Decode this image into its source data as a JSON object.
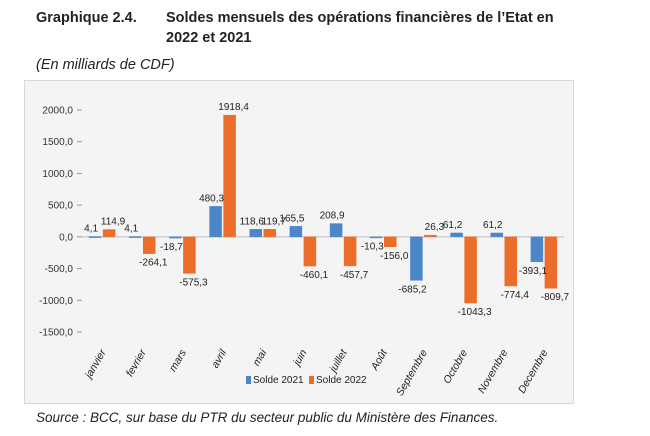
{
  "header": {
    "number": "Graphique 2.4.",
    "title_line1": "Soldes mensuels des opérations financières de l’Etat en",
    "title_line2": "2022 et  2021",
    "unit": "(En milliards de CDF)"
  },
  "source": "Source : BCC, sur base du PTR du secteur public du Ministère des Finances.",
  "chart_data": {
    "type": "bar",
    "title": "Soldes mensuels des opérations financières de l’Etat en 2022 et 2021",
    "ylabel": "En milliards de CDF",
    "ylim": [
      -1500,
      2000
    ],
    "yticks": [
      2000,
      1500,
      1000,
      500,
      0,
      -500,
      -1000,
      -1500
    ],
    "ytick_labels": [
      "2000,0",
      "1500,0",
      "1000,0",
      "500,0",
      "0,0",
      "-500,0",
      "-1000,0",
      "-1500,0"
    ],
    "categories": [
      "janvier",
      "fevrier",
      "mars",
      "avril",
      "mai",
      "juin",
      "juillet",
      "Août",
      "Septembre",
      "Octobre",
      "Novembre",
      "Decembre"
    ],
    "series": [
      {
        "name": "Solde 2021",
        "color": "#4a86c8",
        "values": [
          4.1,
          4.1,
          -18.7,
          480.3,
          118.6,
          165.5,
          208.9,
          -10.3,
          -685.2,
          61.2,
          61.2,
          -393.1
        ],
        "labels": [
          "4,1",
          "4,1",
          "-18,7",
          "480,3",
          "118,6",
          "165,5",
          "208,9",
          "-10,3",
          "-685,2",
          "61,2",
          "61,2",
          "-393,1"
        ]
      },
      {
        "name": "Solde 2022",
        "color": "#ec6d2a",
        "values": [
          114.9,
          -264.1,
          -575.3,
          1918.4,
          119.7,
          -460.1,
          -457.7,
          -156.0,
          26.3,
          -1043.3,
          -774.4,
          -809.7
        ],
        "labels": [
          "114,9",
          "-264,1",
          "-575,3",
          "1918,4",
          "119,7",
          "-460,1",
          "-457,7",
          "-156,0",
          "26,3",
          "-1043,3",
          "-774,4",
          "-809,7"
        ]
      }
    ],
    "legend": [
      "Solde 2021",
      "Solde 2022"
    ],
    "legend_position": "bottom",
    "grid": false
  }
}
